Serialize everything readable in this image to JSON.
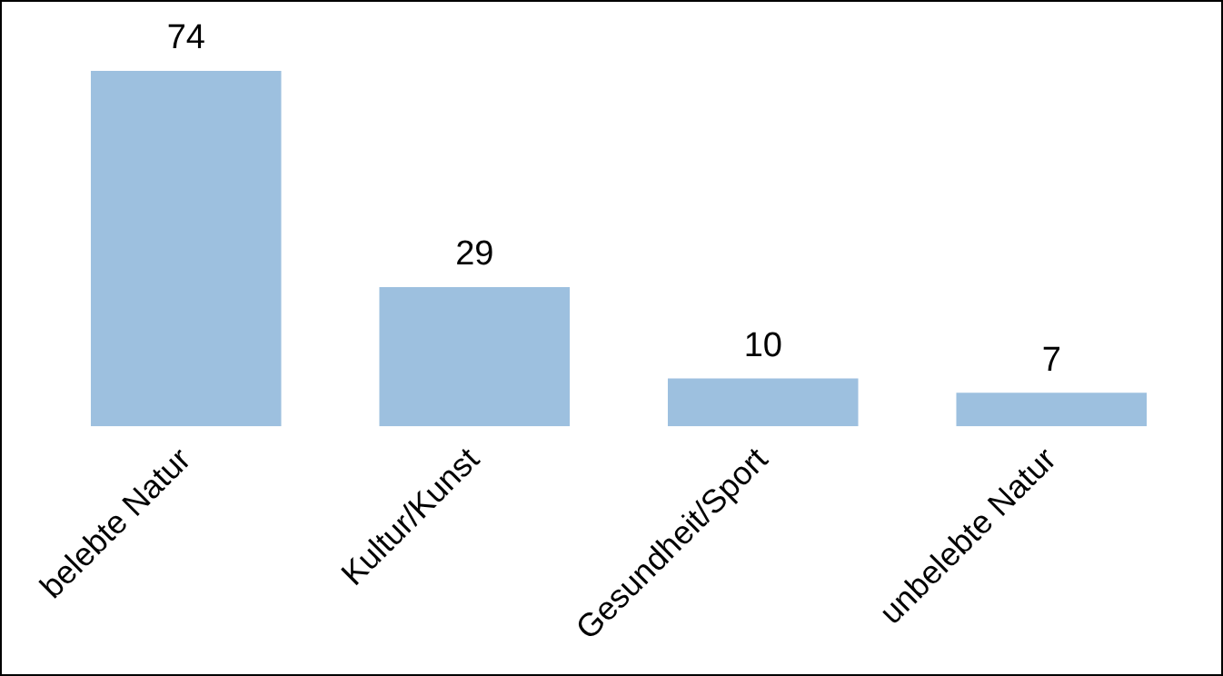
{
  "chart_data": {
    "type": "bar",
    "categories": [
      "belebte Natur",
      "Kultur/Kunst",
      "Gesundheit/Sport",
      "unbelebte Natur"
    ],
    "values": [
      74,
      29,
      10,
      7
    ],
    "color": "#9dc0df",
    "data_labels": true,
    "tick_labels": "x",
    "grid": false,
    "legend": false
  }
}
